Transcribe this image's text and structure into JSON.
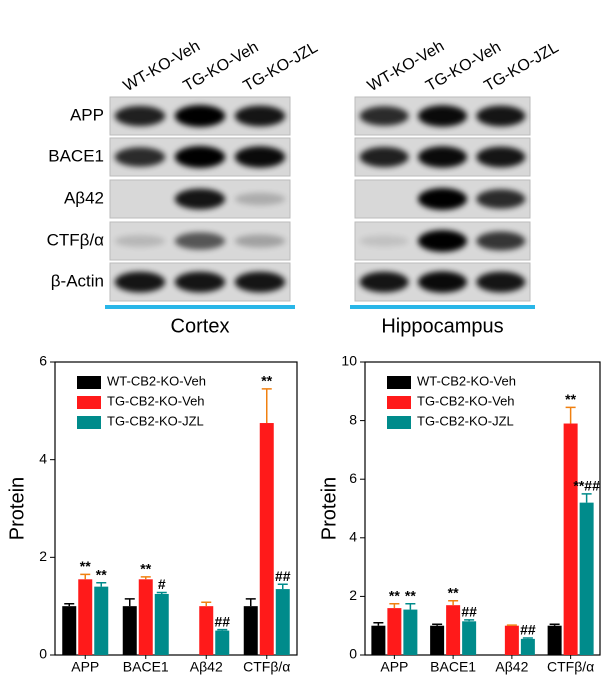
{
  "blots": {
    "rows": [
      "APP",
      "BACE1",
      "Aβ42",
      "CTFβ/α",
      "β-Actin"
    ],
    "panels": [
      {
        "label": "Cortex",
        "columns": [
          "WT-KO-Veh",
          "TG-KO-Veh",
          "TG-KO-JZL"
        ]
      },
      {
        "label": "Hippocampus",
        "columns": [
          "WT-KO-Veh",
          "TG-KO-Veh",
          "TG-KO-JZL"
        ]
      }
    ]
  },
  "chart_data": [
    {
      "type": "bar",
      "ylabel": "Protein",
      "categories": [
        "APP",
        "BACE1",
        "Aβ42",
        "CTFβ/α"
      ],
      "ylim": [
        0,
        6
      ],
      "yticks": [
        0,
        2,
        4,
        6
      ],
      "legend": "upper left",
      "series": [
        {
          "name": "WT-CB2-KO-Veh",
          "color": "#000000",
          "values": [
            1.0,
            1.0,
            null,
            1.0
          ],
          "error": [
            0.05,
            0.15,
            null,
            0.15
          ],
          "annotations": [
            null,
            null,
            null,
            null
          ]
        },
        {
          "name": "TG-CB2-KO-Veh",
          "color": "#ff1a1a",
          "values": [
            1.55,
            1.55,
            1.0,
            4.75
          ],
          "error": [
            0.1,
            0.05,
            0.08,
            0.7
          ],
          "annotations": [
            "**",
            "**",
            null,
            "**"
          ]
        },
        {
          "name": "TG-CB2-KO-JZL",
          "color": "#008b8b",
          "values": [
            1.4,
            1.25,
            0.5,
            1.35
          ],
          "error": [
            0.08,
            0.03,
            0.02,
            0.1
          ],
          "annotations": [
            "**",
            "#",
            "##",
            "##"
          ]
        }
      ]
    },
    {
      "type": "bar",
      "ylabel": "Protein",
      "categories": [
        "APP",
        "BACE1",
        "Aβ42",
        "CTFβ/α"
      ],
      "ylim": [
        0,
        10
      ],
      "yticks": [
        0,
        2,
        4,
        6,
        8,
        10
      ],
      "legend": "upper left",
      "series": [
        {
          "name": "WT-CB2-KO-Veh",
          "color": "#000000",
          "values": [
            1.0,
            1.0,
            null,
            1.0
          ],
          "error": [
            0.1,
            0.05,
            null,
            0.05
          ],
          "annotations": [
            null,
            null,
            null,
            null
          ]
        },
        {
          "name": "TG-CB2-KO-Veh",
          "color": "#ff1a1a",
          "values": [
            1.6,
            1.7,
            1.0,
            7.9
          ],
          "error": [
            0.15,
            0.15,
            0.02,
            0.55
          ],
          "annotations": [
            "**",
            "**",
            null,
            "**"
          ]
        },
        {
          "name": "TG-CB2-KO-JZL",
          "color": "#008b8b",
          "values": [
            1.55,
            1.15,
            0.55,
            5.2
          ],
          "error": [
            0.2,
            0.05,
            0.03,
            0.3
          ],
          "annotations": [
            "**",
            "##",
            "##",
            "**##"
          ]
        }
      ]
    }
  ]
}
